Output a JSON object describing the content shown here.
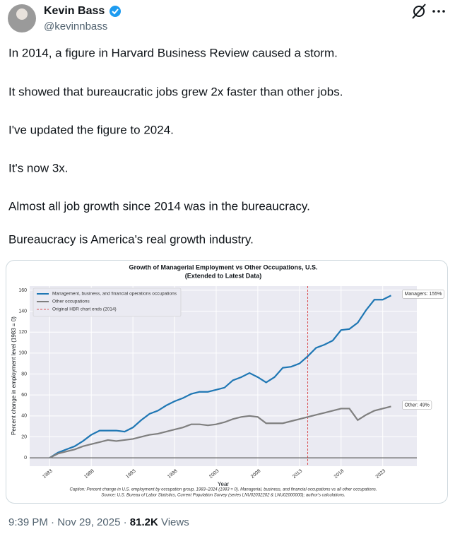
{
  "author": {
    "name": "Kevin Bass",
    "handle": "@kevinnbass"
  },
  "paragraphs": [
    "In 2014, a figure in Harvard Business Review caused a storm.",
    "It showed that bureaucratic jobs grew 2x faster than other jobs.",
    "I've updated the figure to 2024.",
    "It's now 3x.",
    "Almost all job growth since 2014 was in the bureaucracy.",
    "Bureaucracy is America's real growth industry."
  ],
  "footer": {
    "meta": "9:39 PM · Nov 29, 2025 ·",
    "views": "81.2K",
    "views_label": "Views"
  },
  "chart_data": {
    "type": "line",
    "title": [
      "Growth of Managerial Employment vs Other Occupations, U.S.",
      "(Extended to Latest Data)"
    ],
    "xlabel": "Year",
    "ylabel": "Percent change in employment level (1983 = 0)",
    "caption": [
      "Caption: Percent change in U.S. employment by occupation group, 1983–2024 (1983 = 0). Managerial, business, and financial occupations vs all other occupations.",
      "Source: U.S. Bureau of Labor Statistics, Current Population Survey (series LNU02032202 & LNU02000000); author's calculations."
    ],
    "x": [
      1983,
      1984,
      1985,
      1986,
      1987,
      1988,
      1989,
      1990,
      1991,
      1992,
      1993,
      1994,
      1995,
      1996,
      1997,
      1998,
      1999,
      2000,
      2001,
      2002,
      2003,
      2004,
      2005,
      2006,
      2007,
      2008,
      2009,
      2010,
      2011,
      2012,
      2013,
      2014,
      2015,
      2016,
      2017,
      2018,
      2019,
      2020,
      2021,
      2022,
      2023,
      2024
    ],
    "series": [
      {
        "name": "Management, business, and financial operations occupations",
        "color": "#1f77b4",
        "values": [
          0,
          5,
          8,
          11,
          16,
          22,
          26,
          26,
          26,
          25,
          29,
          36,
          42,
          45,
          50,
          54,
          57,
          61,
          63,
          63,
          65,
          67,
          74,
          77,
          81,
          77,
          72,
          77,
          86,
          87,
          90,
          97,
          105,
          108,
          112,
          122,
          123,
          129,
          141,
          151,
          151,
          155
        ]
      },
      {
        "name": "Other occupations",
        "color": "#7f7f7f",
        "values": [
          0,
          4,
          6,
          8,
          11,
          13,
          15,
          17,
          16,
          17,
          18,
          20,
          22,
          23,
          25,
          27,
          29,
          32,
          32,
          31,
          32,
          34,
          37,
          39,
          40,
          39,
          33,
          33,
          33,
          35,
          37,
          39,
          41,
          43,
          45,
          47,
          47,
          36,
          41,
          45,
          47,
          49
        ]
      }
    ],
    "reference_line": {
      "x": 2014,
      "label": "Original HBR chart ends (2014)",
      "color": "#d62728"
    },
    "annotations": [
      "Managers: 155%",
      "Other: 49%"
    ],
    "xlim": [
      1980.6,
      2027.1
    ],
    "xticks": [
      1983,
      1988,
      1993,
      1998,
      2003,
      2008,
      2013,
      2018,
      2023
    ],
    "ylim": [
      -8,
      164
    ],
    "yticks": [
      0,
      20,
      40,
      60,
      80,
      100,
      120,
      140,
      160
    ],
    "grid": true,
    "legend": "upper left"
  }
}
